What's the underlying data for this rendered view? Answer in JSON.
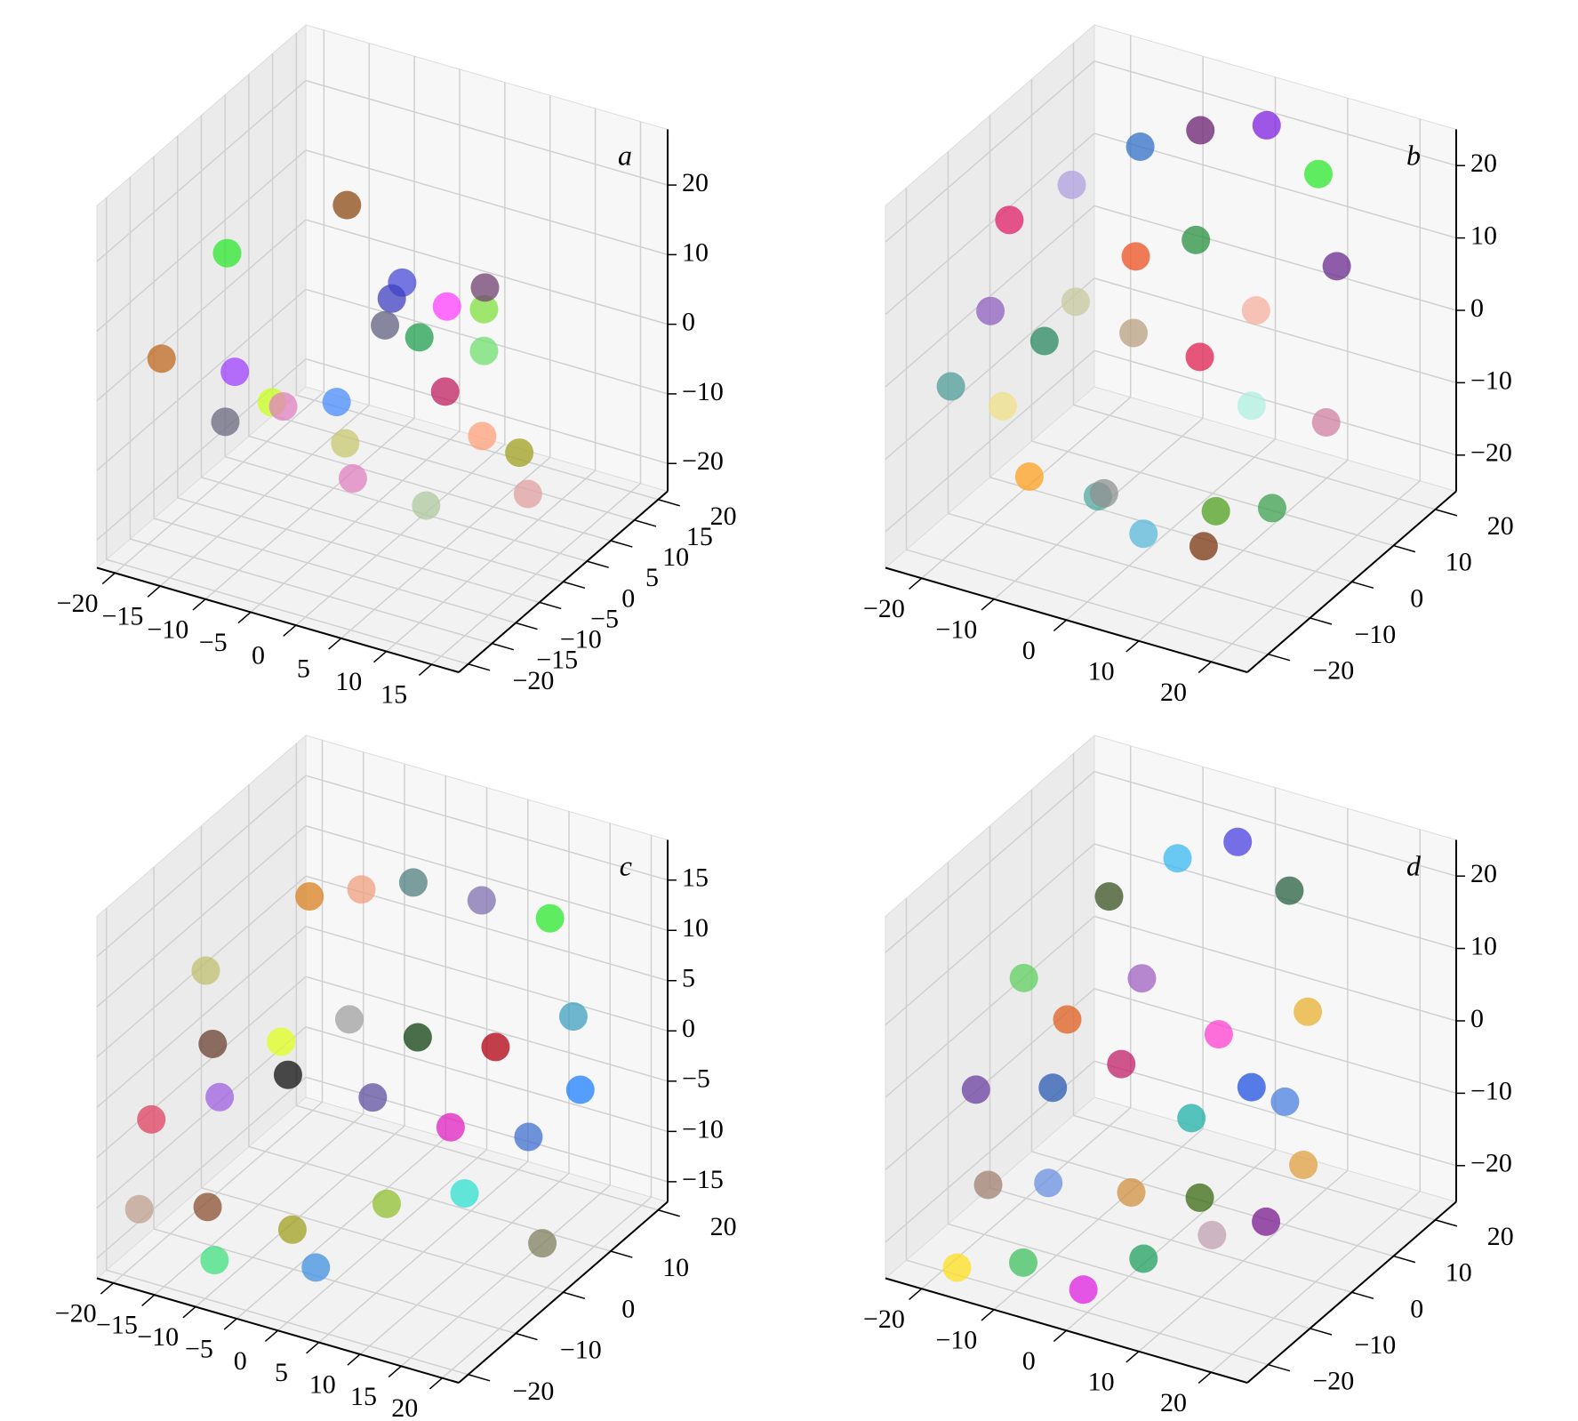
{
  "chart_data": [
    {
      "type": "scatter3d",
      "label": "a",
      "xlim": [
        -22,
        18
      ],
      "ylim": [
        -22,
        22
      ],
      "zlim": [
        -24,
        28
      ],
      "xticks": [
        {
          "value": -20,
          "label": "−20"
        },
        {
          "value": -15,
          "label": "−15"
        },
        {
          "value": -10,
          "label": "−10"
        },
        {
          "value": -5,
          "label": "−5"
        },
        0,
        5,
        10,
        15
      ],
      "yticks": [
        {
          "value": -20,
          "label": "−20"
        },
        {
          "value": -15,
          "label": "−15"
        },
        {
          "value": -10,
          "label": "−10"
        },
        {
          "value": -5,
          "label": "−5"
        },
        0,
        5,
        10,
        15,
        20
      ],
      "zticks": [
        {
          "value": -20,
          "label": "−20"
        },
        {
          "value": -10,
          "label": "−10"
        },
        0,
        10,
        20
      ],
      "x": [
        -16,
        -8,
        -4,
        -12,
        -18,
        -10,
        -6,
        -2,
        2,
        4,
        -8,
        -4,
        0,
        6,
        8,
        10,
        2,
        -14,
        -12,
        0,
        6,
        12,
        4
      ],
      "y": [
        -6,
        4,
        8,
        -12,
        -16,
        -8,
        -2,
        2,
        6,
        10,
        12,
        -4,
        -10,
        -6,
        2,
        6,
        14,
        2,
        -14,
        4,
        -2,
        4,
        10
      ],
      "z": [
        14,
        18,
        6,
        2,
        4,
        -4,
        -6,
        8,
        6,
        4,
        -4,
        -10,
        -10,
        -14,
        -8,
        -12,
        4,
        -12,
        -4,
        2,
        0,
        -16,
        -2
      ],
      "colors": [
        "#2ee82e",
        "#8b4a13",
        "#4b4bd8",
        "#a040ff",
        "#c06820",
        "#c8ff20",
        "#4a8cff",
        "#4040c0",
        "#ff40ff",
        "#80e040",
        "#606080",
        "#c8c870",
        "#e080c0",
        "#b0c8a0",
        "#ffa07a",
        "#a0a020",
        "#704070",
        "#e080c0",
        "#6a6a80",
        "#20a050",
        "#c02060",
        "#e0a0a0",
        "#70e070"
      ]
    },
    {
      "type": "scatter3d",
      "label": "b",
      "xlim": [
        -25,
        25
      ],
      "ylim": [
        -25,
        25
      ],
      "zlim": [
        -25,
        25
      ],
      "xticks": [
        {
          "value": -20,
          "label": "−20"
        },
        {
          "value": -10,
          "label": "−10"
        },
        0,
        10,
        20
      ],
      "yticks": [
        {
          "value": -20,
          "label": "−20"
        },
        {
          "value": -10,
          "label": "−10"
        },
        0,
        10,
        20
      ],
      "zticks": [
        {
          "value": -20,
          "label": "−20"
        },
        {
          "value": -10,
          "label": "−10"
        },
        0,
        10,
        20
      ],
      "x": [
        -20,
        -16,
        -10,
        -4,
        4,
        10,
        16,
        -18,
        -14,
        -2,
        2,
        8,
        14,
        18,
        -12,
        -6,
        0,
        6,
        10,
        -20,
        -8,
        0,
        12,
        -14,
        -4,
        4
      ],
      "y": [
        -4,
        4,
        10,
        14,
        16,
        18,
        12,
        -12,
        -16,
        -14,
        -10,
        -6,
        0,
        6,
        -2,
        2,
        6,
        10,
        2,
        -18,
        -20,
        -16,
        -10,
        -6,
        -2,
        0
      ],
      "z": [
        14,
        16,
        20,
        22,
        24,
        18,
        10,
        6,
        -4,
        -14,
        -20,
        -22,
        -18,
        -8,
        4,
        10,
        12,
        2,
        -6,
        -2,
        -10,
        -12,
        -14,
        0,
        2,
        0
      ],
      "colors": [
        "#e0206a",
        "#b0a0e0",
        "#3070c8",
        "#6a2070",
        "#8020e0",
        "#2ee82e",
        "#6a2a90",
        "#9060c0",
        "#f0e08a",
        "#50a8a0",
        "#5ab8d8",
        "#7a3510",
        "#3ea050",
        "#d080a0",
        "#c8c8a0",
        "#ee5020",
        "#2a9040",
        "#f5b0a0",
        "#b0f0e0",
        "#509e98",
        "#ffa020",
        "#909090",
        "#50a020",
        "#2a8a60",
        "#b8a080",
        "#e02050"
      ]
    },
    {
      "type": "scatter3d",
      "label": "c",
      "xlim": [
        -22,
        22
      ],
      "ylim": [
        -22,
        22
      ],
      "zlim": [
        -17,
        19
      ],
      "xticks": [
        {
          "value": -20,
          "label": "−20"
        },
        {
          "value": -15,
          "label": "−15"
        },
        {
          "value": -10,
          "label": "−10"
        },
        {
          "value": -5,
          "label": "−5"
        },
        0,
        5,
        10,
        15,
        20
      ],
      "yticks": [
        {
          "value": -20,
          "label": "−20"
        },
        {
          "value": -10,
          "label": "−10"
        },
        0,
        10,
        20
      ],
      "zticks": [
        {
          "value": -15,
          "label": "−15"
        },
        {
          "value": -10,
          "label": "−10"
        },
        {
          "value": -5,
          "label": "−5"
        },
        0,
        5,
        10,
        15
      ],
      "x": [
        -18,
        -10,
        -6,
        -2,
        4,
        10,
        -16,
        -10,
        -4,
        2,
        8,
        14,
        -20,
        -14,
        -8,
        0,
        6,
        12,
        16,
        -12,
        -4,
        4,
        10,
        16,
        -18,
        -10,
        0
      ],
      "y": [
        -6,
        2,
        6,
        10,
        14,
        18,
        -8,
        -4,
        0,
        4,
        10,
        16,
        -14,
        -10,
        -6,
        -2,
        4,
        10,
        14,
        -16,
        -12,
        -6,
        0,
        6,
        -20,
        -18,
        -14
      ],
      "z": [
        8,
        14,
        14,
        14,
        12,
        10,
        2,
        2,
        4,
        2,
        0,
        2,
        -4,
        -2,
        0,
        -2,
        -6,
        -8,
        -4,
        -10,
        -12,
        -10,
        -10,
        -16,
        -10,
        -14,
        -14
      ],
      "colors": [
        "#c0c070",
        "#d88020",
        "#f0a080",
        "#508080",
        "#8070b0",
        "#2ee82e",
        "#6a4030",
        "#e0ff20",
        "#a0a0a0",
        "#104010",
        "#b00010",
        "#40a0c0",
        "#e04060",
        "#a060e0",
        "#101010",
        "#6050a0",
        "#e020c0",
        "#4070d0",
        "#2080ff",
        "#8b5030",
        "#a0a020",
        "#90c030",
        "#30e0d0",
        "#808060",
        "#c0a090",
        "#40e080",
        "#4090e0"
      ]
    },
    {
      "type": "scatter3d",
      "label": "d",
      "xlim": [
        -25,
        25
      ],
      "ylim": [
        -25,
        25
      ],
      "zlim": [
        -25,
        25
      ],
      "xticks": [
        {
          "value": -20,
          "label": "−20"
        },
        {
          "value": -10,
          "label": "−10"
        },
        0,
        10,
        20
      ],
      "yticks": [
        {
          "value": -20,
          "label": "−20"
        },
        {
          "value": -10,
          "label": "−10"
        },
        0,
        10,
        20
      ],
      "zticks": [
        {
          "value": -20,
          "label": "−20"
        },
        {
          "value": -10,
          "label": "−10"
        },
        0,
        10,
        20
      ],
      "x": [
        -18,
        -12,
        -6,
        0,
        6,
        12,
        -20,
        -14,
        -8,
        2,
        10,
        16,
        -16,
        -10,
        -2,
        4,
        12,
        -18,
        -10,
        -4,
        2,
        8,
        -12,
        -4,
        4,
        10
      ],
      "y": [
        -4,
        6,
        12,
        16,
        18,
        12,
        -12,
        -4,
        2,
        8,
        10,
        4,
        -16,
        -12,
        -6,
        0,
        2,
        -20,
        -18,
        -14,
        -10,
        -4,
        -4,
        0,
        -2,
        2
      ],
      "z": [
        8,
        16,
        20,
        22,
        16,
        4,
        -4,
        -6,
        -4,
        0,
        -8,
        -12,
        -14,
        -14,
        -16,
        -18,
        -20,
        -24,
        -22,
        -26,
        -22,
        -20,
        4,
        10,
        -6,
        -2
      ],
      "colors": [
        "#60d060",
        "#3a5020",
        "#3abaf0",
        "#4a40e0",
        "#2a6040",
        "#e8b030",
        "#6a40a0",
        "#2a5ab0",
        "#c0206a",
        "#ff40d0",
        "#4a80e0",
        "#e0a040",
        "#a08070",
        "#6a90e0",
        "#d09040",
        "#3a6a10",
        "#7a1a90",
        "#ffe020",
        "#40c060",
        "#e020e0",
        "#20a060",
        "#c0a0b0",
        "#e06020",
        "#a060c0",
        "#20b0a8",
        "#2050e0"
      ]
    }
  ]
}
